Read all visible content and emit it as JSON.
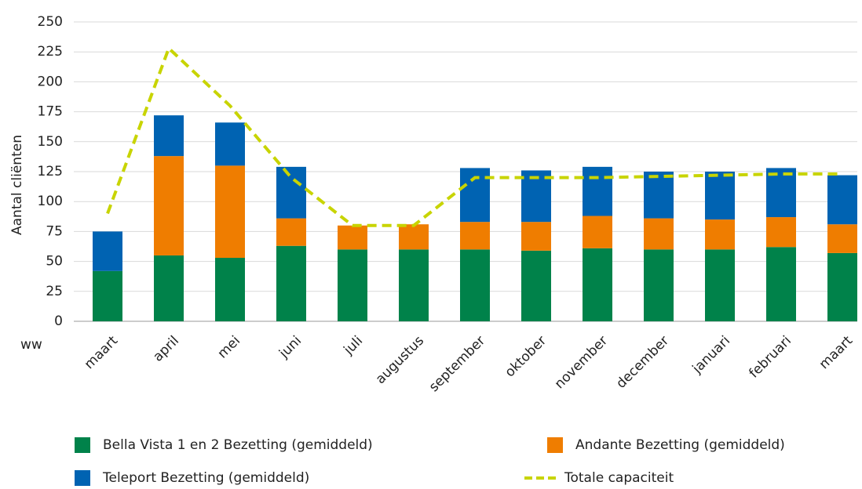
{
  "chart_data": {
    "type": "bar",
    "stacked": true,
    "y_label": "Aantal cliënten",
    "x_label": "ww",
    "categories": [
      "maart",
      "april",
      "mei",
      "juni",
      "juli",
      "augustus",
      "september",
      "oktober",
      "november",
      "december",
      "januari",
      "februari",
      "maart"
    ],
    "series": [
      {
        "name": "Bella Vista 1 en 2 Bezetting (gemiddeld)",
        "color": "#00824a",
        "type": "bar",
        "values": [
          42,
          55,
          53,
          63,
          60,
          60,
          60,
          59,
          61,
          60,
          60,
          62,
          57
        ]
      },
      {
        "name": "Andante Bezetting (gemiddeld)",
        "color": "#ef7d00",
        "type": "bar",
        "values": [
          0,
          83,
          77,
          23,
          20,
          21,
          23,
          24,
          27,
          26,
          25,
          25,
          24
        ]
      },
      {
        "name": "Teleport Bezetting (gemiddeld)",
        "color": "#0063b2",
        "type": "bar",
        "values": [
          33,
          34,
          36,
          43,
          0,
          0,
          45,
          43,
          41,
          39,
          40,
          41,
          41
        ]
      },
      {
        "name": "Totale capaciteit",
        "color": "#c8d400",
        "type": "line",
        "values": [
          90,
          228,
          180,
          120,
          80,
          80,
          120,
          120,
          120,
          121,
          122,
          123,
          123
        ]
      }
    ],
    "ylim": [
      0,
      250
    ],
    "yticks": [
      0,
      25,
      50,
      75,
      100,
      125,
      150,
      175,
      200,
      225,
      250
    ],
    "grid": true
  }
}
